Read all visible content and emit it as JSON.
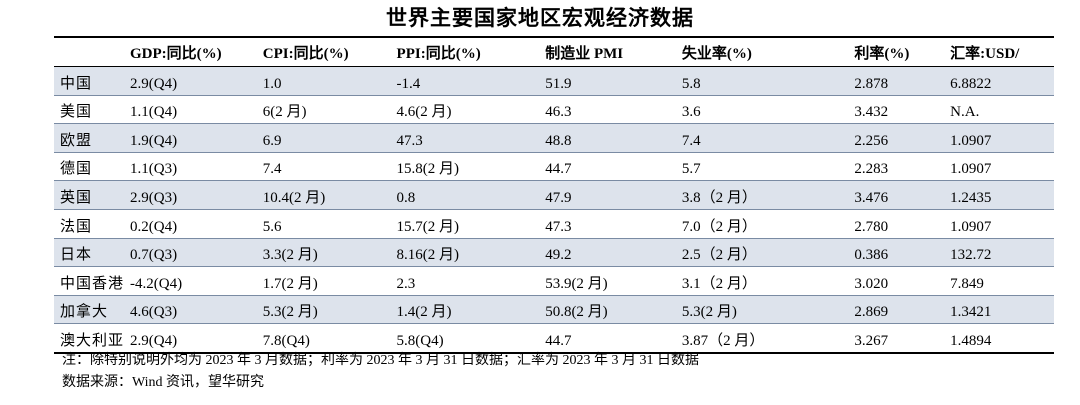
{
  "title": "世界主要国家地区宏观经济数据",
  "columns": [
    "",
    "GDP:同比(%)",
    "CPI:同比(%)",
    "PPI:同比(%)",
    "制造业 PMI",
    "失业率(%)",
    "利率(%)",
    "汇率:USD/"
  ],
  "rows": [
    [
      "中国",
      "2.9(Q4)",
      "1.0",
      "-1.4",
      "51.9",
      "5.8",
      "2.878",
      "6.8822"
    ],
    [
      "美国",
      "1.1(Q4)",
      "6(2 月)",
      "4.6(2 月)",
      "46.3",
      "3.6",
      "3.432",
      "N.A."
    ],
    [
      "欧盟",
      "1.9(Q4)",
      "6.9",
      "47.3",
      "48.8",
      "7.4",
      "2.256",
      "1.0907"
    ],
    [
      "德国",
      "1.1(Q3)",
      "7.4",
      "15.8(2 月)",
      "44.7",
      "5.7",
      "2.283",
      "1.0907"
    ],
    [
      "英国",
      "2.9(Q3)",
      "10.4(2 月)",
      "0.8",
      "47.9",
      "3.8（2 月）",
      "3.476",
      "1.2435"
    ],
    [
      "法国",
      "0.2(Q4)",
      "5.6",
      "15.7(2 月)",
      "47.3",
      "7.0（2 月）",
      "2.780",
      "1.0907"
    ],
    [
      "日本",
      "0.7(Q3)",
      "3.3(2 月)",
      "8.16(2 月)",
      "49.2",
      "2.5（2 月）",
      "0.386",
      "132.72"
    ],
    [
      "中国香港",
      "-4.2(Q4)",
      "1.7(2 月)",
      "2.3",
      "53.9(2 月)",
      "3.1（2 月）",
      "3.020",
      "7.849"
    ],
    [
      "加拿大",
      "4.6(Q3)",
      "5.3(2 月)",
      "1.4(2 月)",
      "50.8(2 月)",
      "5.3(2 月)",
      "2.869",
      "1.3421"
    ],
    [
      "澳大利亚",
      "2.9(Q4)",
      "7.8(Q4)",
      "5.8(Q4)",
      "44.7",
      "3.87（2 月）",
      "3.267",
      "1.4894"
    ]
  ],
  "shaded_rows": [
    0,
    2,
    4,
    6,
    8
  ],
  "shade_color": "#dde3ec",
  "notes": {
    "note": "注：除特别说明外均为 2023 年 3 月数据；利率为 2023 年 3 月 31 日数据；汇率为 2023 年 3 月 31 日数据",
    "source": "数据来源：Wind 资讯，望华研究"
  }
}
